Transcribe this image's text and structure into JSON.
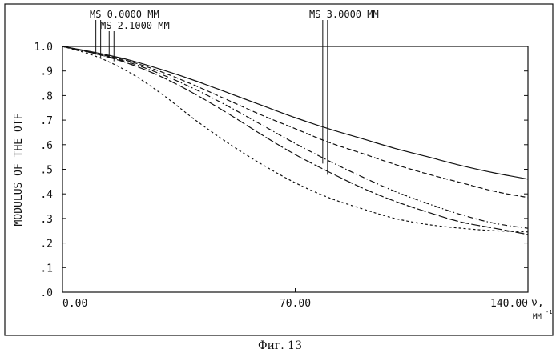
{
  "caption": "Фиг. 13",
  "chart_data": {
    "type": "line",
    "xlabel": "ν,",
    "xunit": "MM",
    "xunit_sup": "-1",
    "ylabel": "MODULUS OF THE OTF",
    "xlim": [
      0,
      140
    ],
    "ylim": [
      0,
      1
    ],
    "x_ticks": [
      {
        "value": 0,
        "label": "0.00"
      },
      {
        "value": 70,
        "label": "70.00"
      },
      {
        "value": 140,
        "label": "140.00"
      }
    ],
    "y_ticks": [
      {
        "value": 0.0,
        "label": ".0"
      },
      {
        "value": 0.1,
        "label": ".1"
      },
      {
        "value": 0.2,
        "label": ".2"
      },
      {
        "value": 0.3,
        "label": ".3"
      },
      {
        "value": 0.4,
        "label": ".4"
      },
      {
        "value": 0.5,
        "label": ".5"
      },
      {
        "value": 0.6,
        "label": ".6"
      },
      {
        "value": 0.7,
        "label": ".7"
      },
      {
        "value": 0.8,
        "label": ".8"
      },
      {
        "value": 0.9,
        "label": ".9"
      },
      {
        "value": 1.0,
        "label": "1.0"
      }
    ],
    "x": [
      0,
      10,
      20,
      30,
      40,
      50,
      60,
      70,
      80,
      90,
      100,
      110,
      120,
      130,
      140
    ],
    "series": [
      {
        "style": "solid",
        "values": [
          1.0,
          0.975,
          0.945,
          0.905,
          0.86,
          0.81,
          0.76,
          0.71,
          0.665,
          0.625,
          0.585,
          0.55,
          0.515,
          0.485,
          0.46
        ]
      },
      {
        "style": "dashed",
        "values": [
          1.0,
          0.972,
          0.94,
          0.895,
          0.84,
          0.78,
          0.72,
          0.665,
          0.61,
          0.565,
          0.52,
          0.48,
          0.445,
          0.41,
          0.385
        ]
      },
      {
        "style": "dashdot",
        "values": [
          1.0,
          0.97,
          0.935,
          0.885,
          0.825,
          0.755,
          0.68,
          0.605,
          0.535,
          0.47,
          0.41,
          0.36,
          0.315,
          0.28,
          0.26
        ]
      },
      {
        "style": "longdash",
        "values": [
          1.0,
          0.97,
          0.93,
          0.875,
          0.805,
          0.725,
          0.64,
          0.56,
          0.49,
          0.425,
          0.37,
          0.325,
          0.285,
          0.26,
          0.235
        ]
      },
      {
        "style": "shortdash",
        "values": [
          1.0,
          0.96,
          0.895,
          0.805,
          0.7,
          0.605,
          0.52,
          0.445,
          0.385,
          0.34,
          0.3,
          0.275,
          0.26,
          0.25,
          0.245
        ]
      }
    ],
    "annotations": [
      {
        "text": "MS 0.0000 MM",
        "x": 11
      },
      {
        "text": "MS 2.1000 MM",
        "x": 15
      },
      {
        "text": "MS 3.0000 MM",
        "x": 79
      }
    ]
  }
}
